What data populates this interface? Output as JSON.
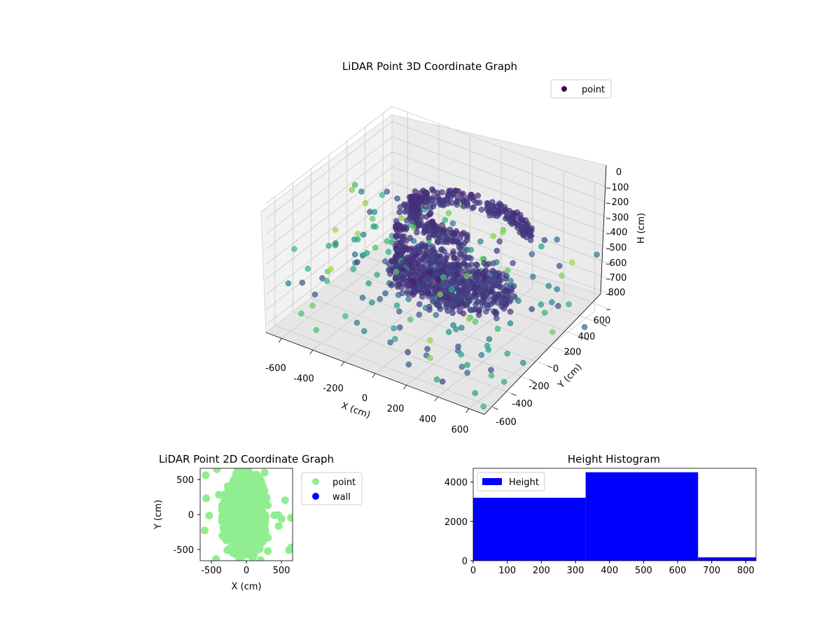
{
  "chart_data": [
    {
      "type": "scatter",
      "projection": "3d",
      "title": "LiDAR Point 3D Coordinate Graph",
      "xlabel": "X (cm)",
      "ylabel": "Y (cm)",
      "zlabel": "H (cm)",
      "xlim": [
        -700,
        700
      ],
      "ylim": [
        -700,
        700
      ],
      "zlim": [
        850,
        0
      ],
      "z_axis_inverted": true,
      "xticks": [
        "-600",
        "-400",
        "-200",
        "0",
        "200",
        "400",
        "600"
      ],
      "yticks": [
        "-600",
        "-400",
        "-200",
        "0",
        "200",
        "400",
        "600"
      ],
      "zticks": [
        "0",
        "100",
        "200",
        "300",
        "400",
        "500",
        "600",
        "700",
        "800"
      ],
      "colormap": "viridis",
      "grid": true,
      "legend": {
        "placement": "top-right",
        "entries": [
          {
            "label": "point",
            "color": "#440154"
          }
        ]
      },
      "series": [
        {
          "name": "point"
        }
      ]
    },
    {
      "type": "scatter",
      "title": "LiDAR Point 2D Coordinate Graph",
      "xlabel": "X (cm)",
      "ylabel": "Y (cm)",
      "xlim": [
        -650,
        650
      ],
      "ylim": [
        -650,
        650
      ],
      "xticks": [
        "-500",
        "0",
        "500"
      ],
      "yticks": [
        "-500",
        "0",
        "500"
      ],
      "legend": {
        "placement": "outside-right"
      },
      "series": [
        {
          "name": "point",
          "color": "#90ee90"
        },
        {
          "name": "wall",
          "color": "#0000ff",
          "points": []
        }
      ]
    },
    {
      "type": "bar",
      "subtype": "histogram",
      "title": "Height Histogram",
      "xlabel": "",
      "ylabel": "",
      "xlim": [
        0,
        830
      ],
      "ylim": [
        0,
        4700
      ],
      "xticks": [
        "0",
        "100",
        "200",
        "300",
        "400",
        "500",
        "600",
        "700",
        "800"
      ],
      "yticks": [
        "0",
        "2000",
        "4000"
      ],
      "bin_edges": [
        0,
        330,
        660,
        830
      ],
      "counts": [
        3200,
        4500,
        170
      ],
      "color": "#0000ff",
      "legend": {
        "placement": "top-left",
        "entries": [
          {
            "label": "Height",
            "color": "#0000ff"
          }
        ]
      }
    }
  ]
}
